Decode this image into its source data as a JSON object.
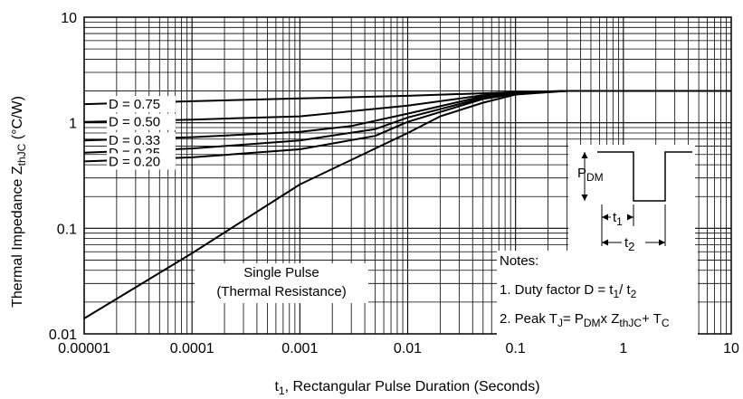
{
  "chart_data": {
    "type": "line",
    "x_scale": "log",
    "y_scale": "log",
    "xlim": [
      1e-05,
      10
    ],
    "ylim": [
      0.01,
      10
    ],
    "grid": true,
    "x_ticks": [
      "0.00001",
      "0.0001",
      "0.001",
      "0.01",
      "0.1",
      "1",
      "10"
    ],
    "y_ticks": [
      "0.01",
      "0.1",
      "1",
      "10"
    ],
    "xlabel": {
      "main": "t",
      "sub": "1",
      "rest": ", Rectangular Pulse Duration (Seconds)"
    },
    "ylabel": {
      "main": "Thermal Impedance Z",
      "sub": "thJC",
      "rest": " (°C/W)"
    },
    "series": [
      {
        "name": "D = 0.75",
        "x": [
          1e-05,
          0.0001,
          0.001,
          0.01,
          0.05,
          0.1,
          0.3,
          1,
          10
        ],
        "y": [
          1.5,
          1.6,
          1.7,
          1.8,
          1.9,
          1.95,
          2.0,
          2.0,
          2.0
        ]
      },
      {
        "name": "D = 0.50",
        "x": [
          1e-05,
          0.0001,
          0.001,
          0.01,
          0.05,
          0.1,
          0.3,
          1,
          10
        ],
        "y": [
          1.02,
          1.07,
          1.15,
          1.45,
          1.82,
          1.92,
          2.0,
          2.0,
          2.0
        ]
      },
      {
        "name": "D = 0.33",
        "x": [
          1e-05,
          0.0001,
          0.001,
          0.003,
          0.01,
          0.05,
          0.1,
          0.3,
          1,
          10
        ],
        "y": [
          0.68,
          0.73,
          0.82,
          0.93,
          1.22,
          1.78,
          1.92,
          2.0,
          2.0,
          2.0
        ]
      },
      {
        "name": "D = 0.25",
        "x": [
          1e-05,
          0.0001,
          0.001,
          0.005,
          0.01,
          0.05,
          0.1,
          0.3,
          1,
          10
        ],
        "y": [
          0.52,
          0.57,
          0.68,
          0.87,
          1.12,
          1.72,
          1.9,
          2.0,
          2.0,
          2.0
        ]
      },
      {
        "name": "D = 0.20",
        "x": [
          1e-05,
          0.0001,
          0.001,
          0.005,
          0.01,
          0.05,
          0.1,
          0.3,
          1,
          10
        ],
        "y": [
          0.43,
          0.47,
          0.56,
          0.75,
          1.02,
          1.68,
          1.88,
          2.0,
          2.0,
          2.0
        ]
      },
      {
        "name": "Single Pulse",
        "label_lines": [
          "Single Pulse",
          "(Thermal Resistance)"
        ],
        "x": [
          1e-05,
          0.0001,
          0.001,
          0.01,
          0.02,
          0.05,
          0.1,
          0.3,
          1,
          10
        ],
        "y": [
          0.014,
          0.058,
          0.26,
          0.8,
          1.15,
          1.55,
          1.85,
          2.0,
          2.0,
          2.0
        ]
      }
    ],
    "inset": {
      "pdm": {
        "main": "P",
        "sub": "DM"
      },
      "t1": {
        "main": "t",
        "sub": "1"
      },
      "t2": {
        "main": "t",
        "sub": "2"
      }
    },
    "notes": {
      "title": "Notes:",
      "line1": {
        "text": "1. Duty factor D = t",
        "sub1": "1",
        "mid": "/ t",
        "sub2": "2"
      },
      "line2": {
        "pre": "2. Peak T",
        "subJ": "J",
        "eq": "= P",
        "subDM": "DM",
        "x": "x Z",
        "subZ": "thJC",
        "plus": "+ T",
        "subC": "C"
      }
    }
  }
}
